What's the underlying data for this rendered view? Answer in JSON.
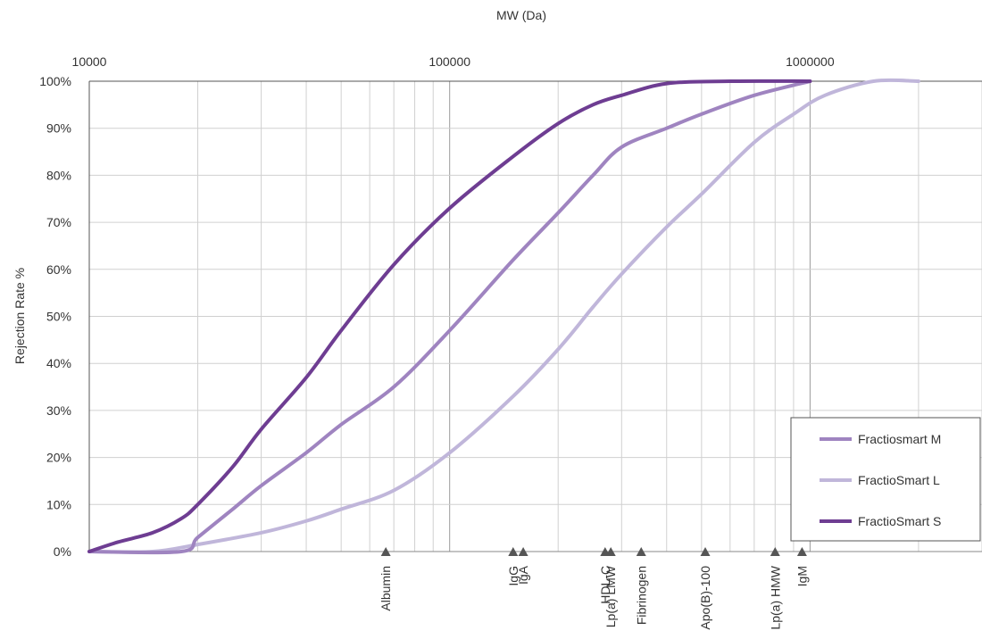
{
  "chart_data": {
    "type": "line",
    "xlabel": "MW (Da)",
    "ylabel": "Rejection Rate %",
    "x_scale": "log",
    "xlim": [
      10000,
      3000000
    ],
    "ylim": [
      0,
      100
    ],
    "x_ticks": [
      10000,
      100000,
      1000000
    ],
    "x_tick_labels": [
      "10000",
      "100000",
      "1000000"
    ],
    "y_ticks": [
      0,
      10,
      20,
      30,
      40,
      50,
      60,
      70,
      80,
      90,
      100
    ],
    "y_tick_labels": [
      "0%",
      "10%",
      "20%",
      "30%",
      "40%",
      "50%",
      "60%",
      "70%",
      "80%",
      "90%",
      "100%"
    ],
    "grid": true,
    "legend_position": "bottom-right",
    "series": [
      {
        "name": "Fractiosmart M",
        "color": "#9f84c0",
        "x": [
          10000,
          18000,
          20000,
          25000,
          30000,
          40000,
          50000,
          70000,
          100000,
          150000,
          200000,
          250000,
          300000,
          400000,
          500000,
          700000,
          1000000
        ],
        "y": [
          0,
          0,
          3,
          9,
          14,
          21,
          27,
          35,
          47,
          62,
          72,
          80,
          86,
          90,
          93,
          97,
          100
        ]
      },
      {
        "name": "FractioSmart L",
        "color": "#c0b6da",
        "x": [
          10000,
          15000,
          20000,
          30000,
          40000,
          50000,
          70000,
          100000,
          150000,
          200000,
          250000,
          300000,
          400000,
          500000,
          700000,
          900000,
          1100000,
          1500000,
          2000000
        ],
        "y": [
          0,
          0,
          1.5,
          4,
          6.5,
          9,
          13,
          21,
          33,
          43,
          52,
          59,
          69,
          76,
          87,
          93,
          97,
          100,
          100
        ]
      },
      {
        "name": "FractioSmart S",
        "color": "#6e3d92",
        "x": [
          10000,
          12000,
          15000,
          18000,
          20000,
          25000,
          30000,
          40000,
          50000,
          70000,
          100000,
          150000,
          200000,
          250000,
          300000,
          400000,
          600000,
          1000000
        ],
        "y": [
          0,
          2,
          4,
          7,
          10,
          18,
          26,
          37,
          47,
          61,
          73,
          84,
          91,
          95,
          97,
          99.5,
          100,
          100
        ]
      }
    ],
    "markers": [
      {
        "label": "Albumin",
        "x": 66500
      },
      {
        "label": "IgG",
        "x": 150000
      },
      {
        "label": "IgA",
        "x": 160000
      },
      {
        "label": "HDL-C",
        "x": 270000
      },
      {
        "label": "Lp(a) LMW",
        "x": 280000
      },
      {
        "label": "Fibrinogen",
        "x": 340000
      },
      {
        "label": "Apo(B)-100",
        "x": 512000
      },
      {
        "label": "Lp(a) HMW",
        "x": 800000
      },
      {
        "label": "IgM",
        "x": 950000
      }
    ]
  }
}
